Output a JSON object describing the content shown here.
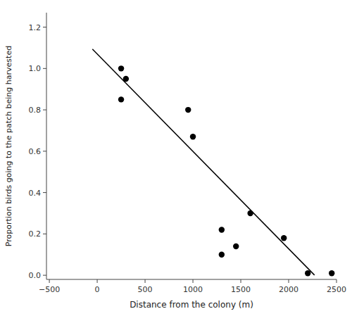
{
  "chart_data": {
    "type": "scatter",
    "xlabel": "Distance from the colony (m)",
    "ylabel": "Proportion birds going to the patch being harvested",
    "series": [
      {
        "type": "scatter",
        "marker": "circle",
        "color": "#000000",
        "x": [
          250,
          300,
          250,
          950,
          1000,
          1300,
          1300,
          1450,
          1600,
          1950,
          2200,
          2450
        ],
        "values": [
          1.0,
          0.95,
          0.85,
          0.8,
          0.67,
          0.22,
          0.1,
          0.14,
          0.3,
          0.18,
          0.01,
          0.01
        ]
      },
      {
        "type": "line",
        "line_style": "solid",
        "color": "#000000",
        "x": [
          -50,
          2270
        ],
        "values": [
          1.09355,
          0.00083
        ]
      }
    ],
    "xlim": [
      -530,
      2500
    ],
    "ylim": [
      -0.02,
      1.27
    ],
    "xticks": [
      {
        "value": -500,
        "label": "−500"
      },
      0,
      500,
      1000,
      1500,
      2000,
      2500
    ],
    "yticks": [
      {
        "value": 0.0,
        "label": "0.0"
      },
      0.2,
      0.4,
      0.6,
      0.8,
      {
        "value": 1.0,
        "label": "1.0"
      },
      1.2
    ],
    "grid": false
  }
}
